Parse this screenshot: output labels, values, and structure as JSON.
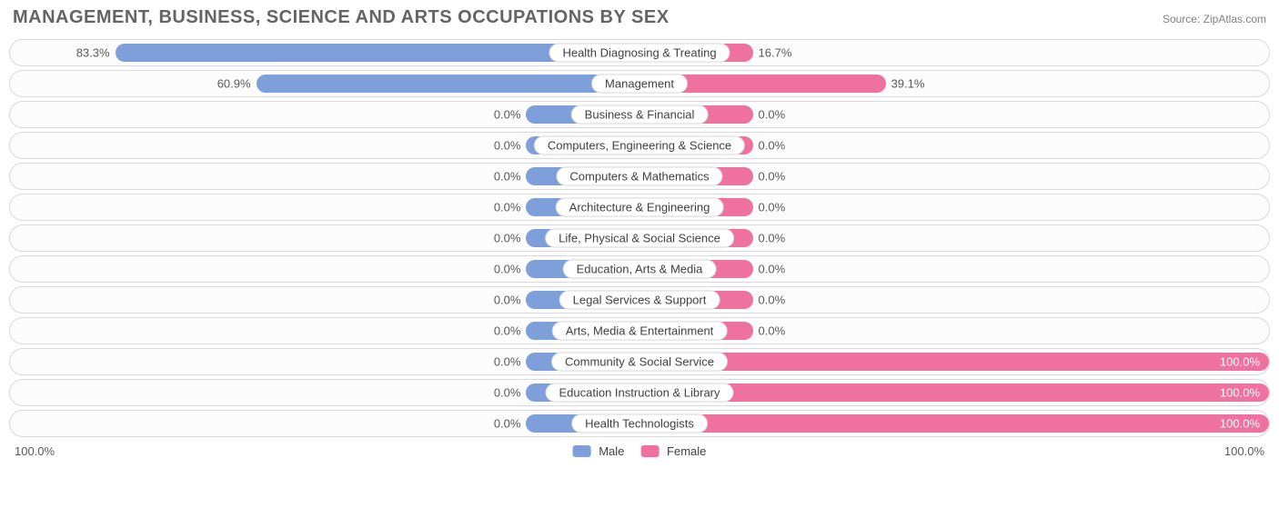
{
  "title": "MANAGEMENT, BUSINESS, SCIENCE AND ARTS OCCUPATIONS BY SEX",
  "source": "Source: ZipAtlas.com",
  "axis": {
    "left": "100.0%",
    "right": "100.0%"
  },
  "legend": {
    "male": {
      "label": "Male",
      "color": "#7e9fd9"
    },
    "female": {
      "label": "Female",
      "color": "#ee719e"
    }
  },
  "style": {
    "min_bar_pct": 18,
    "track_border": "#d9d9d9",
    "track_bg": "#fcfcfc",
    "label_color": "#5a5a5a",
    "title_color": "#646464"
  },
  "rows": [
    {
      "category": "Health Diagnosing & Treating",
      "male": 83.3,
      "female": 16.7
    },
    {
      "category": "Management",
      "male": 60.9,
      "female": 39.1
    },
    {
      "category": "Business & Financial",
      "male": 0.0,
      "female": 0.0
    },
    {
      "category": "Computers, Engineering & Science",
      "male": 0.0,
      "female": 0.0
    },
    {
      "category": "Computers & Mathematics",
      "male": 0.0,
      "female": 0.0
    },
    {
      "category": "Architecture & Engineering",
      "male": 0.0,
      "female": 0.0
    },
    {
      "category": "Life, Physical & Social Science",
      "male": 0.0,
      "female": 0.0
    },
    {
      "category": "Education, Arts & Media",
      "male": 0.0,
      "female": 0.0
    },
    {
      "category": "Legal Services & Support",
      "male": 0.0,
      "female": 0.0
    },
    {
      "category": "Arts, Media & Entertainment",
      "male": 0.0,
      "female": 0.0
    },
    {
      "category": "Community & Social Service",
      "male": 0.0,
      "female": 100.0
    },
    {
      "category": "Education Instruction & Library",
      "male": 0.0,
      "female": 100.0
    },
    {
      "category": "Health Technologists",
      "male": 0.0,
      "female": 100.0
    }
  ]
}
